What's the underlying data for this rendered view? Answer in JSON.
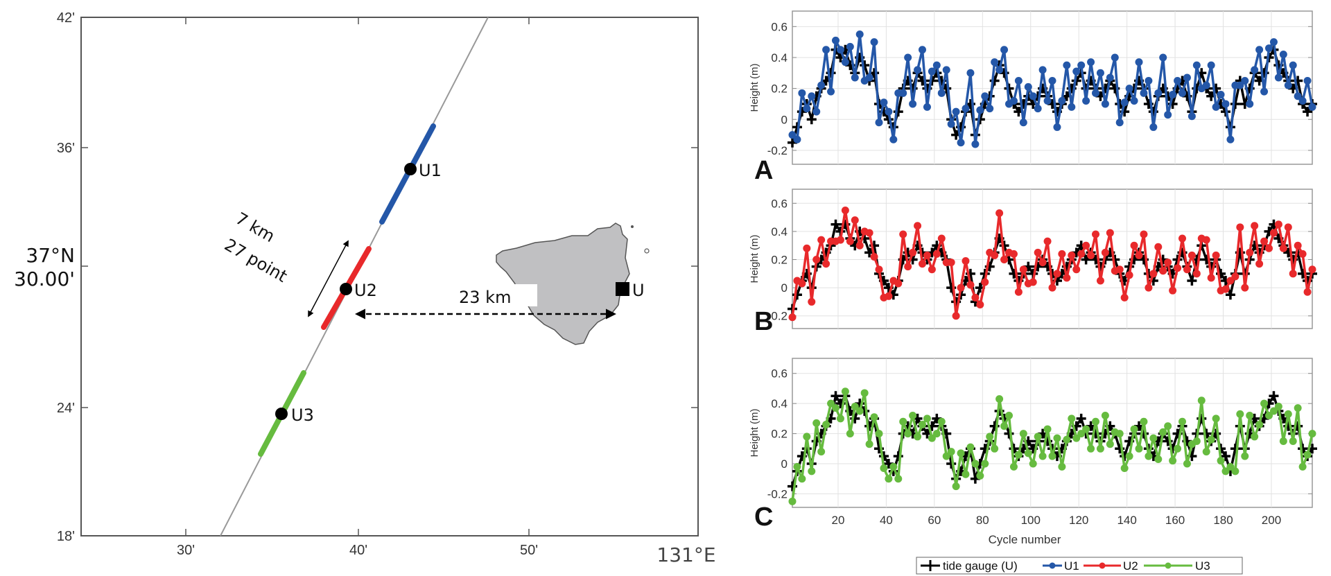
{
  "map": {
    "y_ticks": [
      "42'",
      "36'",
      "30.00'",
      "24'",
      "18'"
    ],
    "lat_label": "37°N",
    "x_ticks": [
      "30'",
      "40'",
      "50'"
    ],
    "lon_label": "131°E",
    "points": [
      "U1",
      "U2",
      "U3"
    ],
    "gauge_label": "U",
    "distance_label": "23 km",
    "segment_length_label": "7 km",
    "segment_points_label": "27 point",
    "colors": {
      "U1": "#2457a8",
      "U2": "#e8292b",
      "U3": "#66bb3f",
      "island": "#c0c0c2",
      "track": "#999999"
    }
  },
  "panel_letters": [
    "A",
    "B",
    "C"
  ],
  "legend": [
    "tide gauge (U)",
    "U1",
    "U2",
    "U3"
  ],
  "chart_data": [
    {
      "type": "line",
      "panel": "A",
      "ylabel": "Height (m)",
      "xlabel": "",
      "xlim": [
        1,
        217
      ],
      "ylim": [
        -0.29,
        0.7
      ],
      "grid": true,
      "y_ticks": [
        "-0.2",
        "0",
        "0.2",
        "0.4",
        "0.6"
      ],
      "x_ticks": [],
      "x": [
        1,
        3,
        5,
        7,
        9,
        11,
        13,
        15,
        17,
        19,
        21,
        23,
        25,
        27,
        29,
        31,
        33,
        35,
        37,
        39,
        41,
        43,
        45,
        47,
        49,
        51,
        53,
        55,
        57,
        59,
        61,
        63,
        65,
        67,
        69,
        71,
        73,
        75,
        77,
        79,
        81,
        83,
        85,
        87,
        89,
        91,
        93,
        95,
        97,
        99,
        101,
        103,
        105,
        107,
        109,
        111,
        113,
        115,
        117,
        119,
        121,
        123,
        125,
        127,
        129,
        131,
        133,
        135,
        137,
        139,
        141,
        143,
        145,
        147,
        149,
        151,
        153,
        155,
        157,
        159,
        161,
        163,
        165,
        167,
        169,
        171,
        173,
        175,
        177,
        179,
        181,
        183,
        185,
        187,
        189,
        191,
        193,
        195,
        197,
        199,
        201,
        203,
        205,
        207,
        209,
        211,
        213,
        215,
        217
      ],
      "series": [
        {
          "name": "tide gauge (U)",
          "color": "#000000",
          "marker": "plus",
          "values": [
            -0.15,
            -0.05,
            0.05,
            0.1,
            0.0,
            0.15,
            0.2,
            0.25,
            0.3,
            0.45,
            0.4,
            0.45,
            0.35,
            0.3,
            0.4,
            0.35,
            0.25,
            0.3,
            0.1,
            0.05,
            0.0,
            -0.05,
            0.05,
            0.2,
            0.25,
            0.2,
            0.3,
            0.25,
            0.2,
            0.25,
            0.3,
            0.25,
            0.2,
            0.0,
            -0.1,
            -0.05,
            0.05,
            0.1,
            -0.1,
            0.0,
            0.1,
            0.15,
            0.25,
            0.35,
            0.3,
            0.2,
            0.1,
            0.05,
            0.1,
            0.15,
            0.1,
            0.15,
            0.2,
            0.15,
            0.1,
            0.05,
            0.1,
            0.15,
            0.2,
            0.25,
            0.3,
            0.2,
            0.25,
            0.2,
            0.15,
            0.2,
            0.25,
            0.2,
            0.1,
            0.05,
            0.15,
            0.2,
            0.25,
            0.2,
            0.1,
            0.05,
            0.15,
            0.2,
            0.15,
            0.1,
            0.2,
            0.25,
            0.15,
            0.05,
            0.2,
            0.3,
            0.2,
            0.15,
            0.2,
            0.1,
            0.05,
            -0.05,
            0.1,
            0.25,
            0.1,
            0.2,
            0.3,
            0.25,
            0.3,
            0.4,
            0.45,
            0.35,
            0.3,
            0.25,
            0.2,
            0.25,
            0.1,
            0.05,
            0.1
          ]
        },
        {
          "name": "U1",
          "color": "#2457a8",
          "marker": "circle",
          "values": [
            -0.1,
            -0.13,
            0.17,
            0.07,
            0.15,
            0.05,
            0.22,
            0.45,
            0.18,
            0.51,
            0.45,
            0.37,
            0.47,
            0.27,
            0.55,
            0.25,
            0.27,
            0.5,
            -0.02,
            0.11,
            0.05,
            -0.13,
            0.17,
            0.17,
            0.4,
            0.1,
            0.32,
            0.45,
            0.08,
            0.31,
            0.35,
            0.17,
            0.32,
            -0.03,
            0.05,
            -0.15,
            0.07,
            0.3,
            -0.16,
            0.06,
            0.15,
            0.07,
            0.37,
            0.32,
            0.45,
            0.1,
            0.12,
            0.25,
            -0.02,
            0.21,
            0.15,
            0.07,
            0.32,
            0.12,
            0.25,
            -0.05,
            0.12,
            0.35,
            0.08,
            0.31,
            0.35,
            0.12,
            0.37,
            0.17,
            0.3,
            0.1,
            0.27,
            0.4,
            -0.02,
            0.11,
            0.2,
            0.12,
            0.37,
            0.17,
            0.25,
            -0.05,
            0.17,
            0.4,
            0.03,
            0.16,
            0.25,
            0.17,
            0.27,
            0.02,
            0.35,
            0.2,
            0.22,
            0.35,
            0.08,
            0.16,
            0.1,
            -0.13,
            0.22,
            0.22,
            0.25,
            0.1,
            0.32,
            0.45,
            0.18,
            0.46,
            0.5,
            0.27,
            0.42,
            0.22,
            0.35,
            0.15,
            0.12,
            0.25,
            0.08
          ]
        }
      ]
    },
    {
      "type": "line",
      "panel": "B",
      "ylabel": "Height (m)",
      "xlabel": "",
      "xlim": [
        1,
        217
      ],
      "ylim": [
        -0.29,
        0.7
      ],
      "grid": true,
      "y_ticks": [
        "-0.2",
        "0",
        "0.2",
        "0.4",
        "0.6"
      ],
      "x_ticks": [],
      "x": [
        1,
        3,
        5,
        7,
        9,
        11,
        13,
        15,
        17,
        19,
        21,
        23,
        25,
        27,
        29,
        31,
        33,
        35,
        37,
        39,
        41,
        43,
        45,
        47,
        49,
        51,
        53,
        55,
        57,
        59,
        61,
        63,
        65,
        67,
        69,
        71,
        73,
        75,
        77,
        79,
        81,
        83,
        85,
        87,
        89,
        91,
        93,
        95,
        97,
        99,
        101,
        103,
        105,
        107,
        109,
        111,
        113,
        115,
        117,
        119,
        121,
        123,
        125,
        127,
        129,
        131,
        133,
        135,
        137,
        139,
        141,
        143,
        145,
        147,
        149,
        151,
        153,
        155,
        157,
        159,
        161,
        163,
        165,
        167,
        169,
        171,
        173,
        175,
        177,
        179,
        181,
        183,
        185,
        187,
        189,
        191,
        193,
        195,
        197,
        199,
        201,
        203,
        205,
        207,
        209,
        211,
        213,
        215,
        217
      ],
      "series": [
        {
          "name": "tide gauge (U)",
          "color": "#000000",
          "marker": "plus",
          "values": [
            -0.15,
            -0.05,
            0.05,
            0.1,
            0.0,
            0.15,
            0.2,
            0.25,
            0.3,
            0.45,
            0.4,
            0.45,
            0.35,
            0.3,
            0.4,
            0.35,
            0.25,
            0.3,
            0.1,
            0.05,
            0.0,
            -0.05,
            0.05,
            0.2,
            0.25,
            0.2,
            0.3,
            0.25,
            0.2,
            0.25,
            0.3,
            0.25,
            0.2,
            0.0,
            -0.1,
            -0.05,
            0.05,
            0.1,
            -0.1,
            0.0,
            0.1,
            0.15,
            0.25,
            0.35,
            0.3,
            0.2,
            0.1,
            0.05,
            0.1,
            0.15,
            0.1,
            0.15,
            0.2,
            0.15,
            0.1,
            0.05,
            0.1,
            0.15,
            0.2,
            0.25,
            0.3,
            0.2,
            0.25,
            0.2,
            0.15,
            0.2,
            0.25,
            0.2,
            0.1,
            0.05,
            0.15,
            0.2,
            0.25,
            0.2,
            0.1,
            0.05,
            0.15,
            0.2,
            0.15,
            0.1,
            0.2,
            0.25,
            0.15,
            0.05,
            0.2,
            0.3,
            0.2,
            0.15,
            0.2,
            0.1,
            0.05,
            -0.05,
            0.1,
            0.25,
            0.1,
            0.2,
            0.3,
            0.25,
            0.3,
            0.4,
            0.45,
            0.35,
            0.3,
            0.25,
            0.2,
            0.25,
            0.1,
            0.05,
            0.1
          ]
        },
        {
          "name": "U2",
          "color": "#e8292b",
          "marker": "circle",
          "values": [
            -0.21,
            0.05,
            0.03,
            0.28,
            -0.1,
            0.2,
            0.34,
            0.17,
            0.33,
            0.33,
            0.34,
            0.55,
            0.33,
            0.48,
            0.3,
            0.4,
            0.39,
            0.22,
            0.13,
            -0.07,
            -0.06,
            0.05,
            0.03,
            0.38,
            0.15,
            0.25,
            0.44,
            0.17,
            0.23,
            0.13,
            0.24,
            0.35,
            0.18,
            0.18,
            -0.2,
            0.0,
            0.19,
            0.02,
            -0.07,
            -0.12,
            0.04,
            0.25,
            0.23,
            0.53,
            0.2,
            0.25,
            0.24,
            -0.03,
            0.13,
            0.03,
            0.04,
            0.25,
            0.18,
            0.33,
            0.0,
            0.1,
            0.24,
            0.07,
            0.23,
            0.13,
            0.24,
            0.3,
            0.23,
            0.38,
            0.05,
            0.25,
            0.39,
            0.12,
            0.13,
            -0.07,
            0.09,
            0.3,
            0.23,
            0.38,
            0.0,
            0.1,
            0.29,
            0.12,
            0.18,
            -0.02,
            0.14,
            0.35,
            0.13,
            0.23,
            0.1,
            0.35,
            0.34,
            0.07,
            0.23,
            -0.02,
            -0.01,
            0.05,
            0.08,
            0.43,
            0.0,
            0.25,
            0.44,
            0.17,
            0.33,
            0.28,
            0.39,
            0.45,
            0.28,
            0.43,
            0.1,
            0.3,
            0.24,
            -0.03,
            0.13
          ]
        }
      ]
    },
    {
      "type": "line",
      "panel": "C",
      "ylabel": "Height (m)",
      "xlabel": "Cycle number",
      "xlim": [
        1,
        217
      ],
      "ylim": [
        -0.29,
        0.7
      ],
      "grid": true,
      "y_ticks": [
        "-0.2",
        "0",
        "0.2",
        "0.4",
        "0.6"
      ],
      "x_ticks": [
        "20",
        "40",
        "60",
        "80",
        "100",
        "120",
        "140",
        "160",
        "180",
        "200"
      ],
      "x": [
        1,
        3,
        5,
        7,
        9,
        11,
        13,
        15,
        17,
        19,
        21,
        23,
        25,
        27,
        29,
        31,
        33,
        35,
        37,
        39,
        41,
        43,
        45,
        47,
        49,
        51,
        53,
        55,
        57,
        59,
        61,
        63,
        65,
        67,
        69,
        71,
        73,
        75,
        77,
        79,
        81,
        83,
        85,
        87,
        89,
        91,
        93,
        95,
        97,
        99,
        101,
        103,
        105,
        107,
        109,
        111,
        113,
        115,
        117,
        119,
        121,
        123,
        125,
        127,
        129,
        131,
        133,
        135,
        137,
        139,
        141,
        143,
        145,
        147,
        149,
        151,
        153,
        155,
        157,
        159,
        161,
        163,
        165,
        167,
        169,
        171,
        173,
        175,
        177,
        179,
        181,
        183,
        185,
        187,
        189,
        191,
        193,
        195,
        197,
        199,
        201,
        203,
        205,
        207,
        209,
        211,
        213,
        215,
        217
      ],
      "series": [
        {
          "name": "tide gauge (U)",
          "color": "#000000",
          "marker": "plus",
          "values": [
            -0.15,
            -0.05,
            0.05,
            0.1,
            0.0,
            0.15,
            0.2,
            0.25,
            0.3,
            0.45,
            0.4,
            0.45,
            0.35,
            0.3,
            0.4,
            0.35,
            0.25,
            0.3,
            0.1,
            0.05,
            0.0,
            -0.05,
            0.05,
            0.2,
            0.25,
            0.2,
            0.3,
            0.25,
            0.2,
            0.25,
            0.3,
            0.25,
            0.2,
            0.0,
            -0.1,
            -0.05,
            0.05,
            0.1,
            -0.1,
            0.0,
            0.1,
            0.15,
            0.25,
            0.35,
            0.3,
            0.2,
            0.1,
            0.05,
            0.1,
            0.15,
            0.1,
            0.15,
            0.2,
            0.15,
            0.1,
            0.05,
            0.1,
            0.15,
            0.2,
            0.25,
            0.3,
            0.2,
            0.25,
            0.2,
            0.15,
            0.2,
            0.25,
            0.2,
            0.1,
            0.05,
            0.15,
            0.2,
            0.25,
            0.2,
            0.1,
            0.05,
            0.15,
            0.2,
            0.15,
            0.1,
            0.2,
            0.25,
            0.15,
            0.05,
            0.2,
            0.3,
            0.2,
            0.15,
            0.2,
            0.1,
            0.05,
            -0.05,
            0.1,
            0.25,
            0.1,
            0.2,
            0.3,
            0.25,
            0.3,
            0.4,
            0.45,
            0.35,
            0.3,
            0.25,
            0.2,
            0.25,
            0.1,
            0.05,
            0.1
          ]
        },
        {
          "name": "U3",
          "color": "#66bb3f",
          "marker": "circle",
          "values": [
            -0.25,
            -0.02,
            -0.1,
            0.18,
            -0.05,
            0.27,
            0.08,
            0.26,
            0.4,
            0.37,
            0.3,
            0.48,
            0.2,
            0.38,
            0.35,
            0.47,
            0.13,
            0.31,
            0.2,
            -0.03,
            -0.1,
            -0.02,
            -0.1,
            0.28,
            0.2,
            0.32,
            0.18,
            0.26,
            0.3,
            0.17,
            0.2,
            0.28,
            0.05,
            0.08,
            -0.15,
            0.07,
            -0.07,
            0.11,
            0.0,
            -0.08,
            0.0,
            0.18,
            0.1,
            0.43,
            0.25,
            0.32,
            -0.02,
            0.06,
            0.2,
            0.07,
            0.0,
            0.18,
            0.05,
            0.23,
            0.05,
            0.17,
            -0.02,
            0.16,
            0.3,
            0.17,
            0.2,
            0.23,
            0.1,
            0.28,
            0.1,
            0.32,
            0.13,
            0.21,
            0.2,
            -0.03,
            0.05,
            0.23,
            0.1,
            0.28,
            0.05,
            0.17,
            0.03,
            0.21,
            0.25,
            0.02,
            0.1,
            0.28,
            0.0,
            0.13,
            0.15,
            0.42,
            0.08,
            0.16,
            0.3,
            0.02,
            -0.05,
            -0.02,
            -0.05,
            0.33,
            0.05,
            0.32,
            0.18,
            0.26,
            0.4,
            0.32,
            0.35,
            0.38,
            0.15,
            0.33,
            0.15,
            0.37,
            -0.02,
            0.06,
            0.2
          ]
        }
      ]
    }
  ]
}
